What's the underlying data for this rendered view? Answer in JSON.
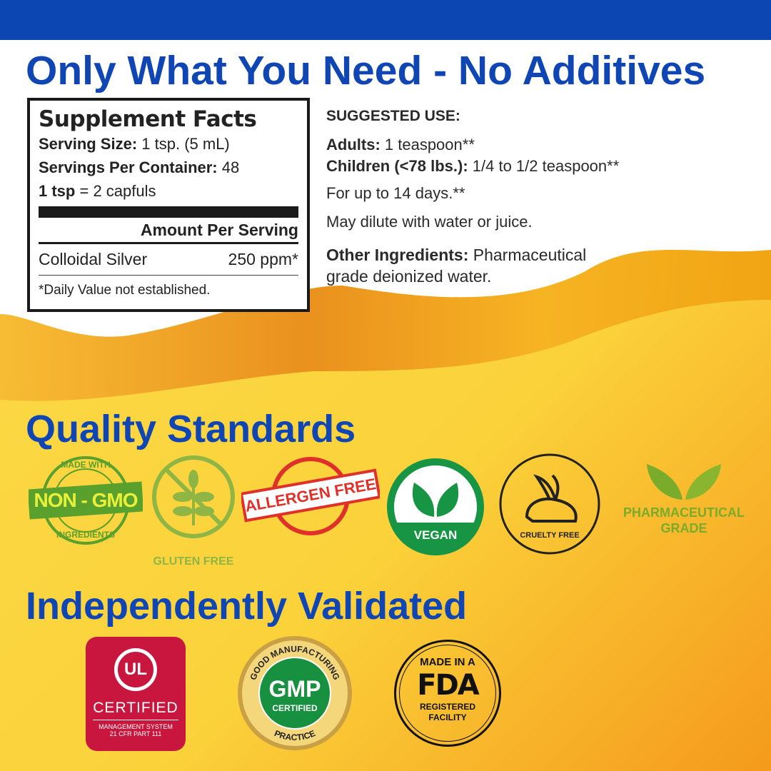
{
  "header": {
    "title": "Only What You Need - No Additives"
  },
  "supplement_facts": {
    "title": "Supplement Facts",
    "serving_size_label": "Serving Size:",
    "serving_size": "1 tsp. (5 mL)",
    "servings_label": "Servings Per Container:",
    "servings": "48",
    "tsp_label": "1 tsp",
    "tsp_value": "= 2 capfuls",
    "amount_header": "Amount Per Serving",
    "ingredient": "Colloidal Silver",
    "ingredient_amount": "250 ppm*",
    "footnote": "*Daily Value not established."
  },
  "suggested_use": {
    "title": "SUGGESTED USE:",
    "adults_label": "Adults:",
    "adults": "1 teaspoon**",
    "children_label": "Children (<78 lbs.):",
    "children": "1/4 to 1/2 teaspoon**",
    "duration": "For up to 14 days.**",
    "dilute": "May dilute with water or juice.",
    "other_label": "Other Ingredients:",
    "other": "Pharmaceutical grade deionized water."
  },
  "quality": {
    "title": "Quality Standards",
    "badges": [
      {
        "name": "non-gmo",
        "top": "MADE WITH",
        "main": "NON - GMO",
        "bottom": "INGREDIENTS"
      },
      {
        "name": "gluten-free",
        "label": "GLUTEN FREE"
      },
      {
        "name": "allergen-free",
        "label": "ALLERGEN FREE"
      },
      {
        "name": "vegan",
        "label": "VEGAN"
      },
      {
        "name": "cruelty-free",
        "label": "CRUELTY FREE"
      },
      {
        "name": "pharmaceutical-grade",
        "line1": "PHARMACEUTICAL",
        "line2": "GRADE"
      }
    ]
  },
  "validated": {
    "title": "Independently Validated",
    "ul": {
      "logo": "UL",
      "label": "CERTIFIED",
      "sub1": "MANAGEMENT SYSTEM",
      "sub2": "21 CFR PART 111"
    },
    "gmp": {
      "ring_top": "GOOD MANUFACTURING",
      "ring_bottom": "PRACTICE",
      "main": "GMP",
      "sub": "CERTIFIED"
    },
    "fda": {
      "top": "MADE IN A",
      "main": "FDA",
      "bottom1": "REGISTERED",
      "bottom2": "FACILITY"
    }
  },
  "colors": {
    "brand_blue": "#1046b4",
    "yellow": "#fad43a",
    "orange": "#f29a1a",
    "ul_red": "#c8163e",
    "gmp_green": "#17913f",
    "badge_green": "#6aa82c",
    "allergen_red": "#e0302a"
  }
}
